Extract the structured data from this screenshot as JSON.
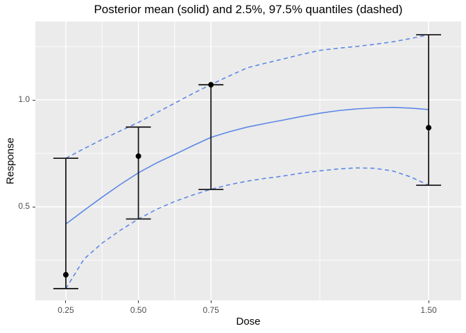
{
  "figure": {
    "title": "Posterior mean (solid) and 2.5%, 97.5% quantiles (dashed)",
    "x_axis_label": "Dose",
    "y_axis_label": "Response"
  },
  "chart_data": {
    "type": "line",
    "title": "Posterior mean (solid) and 2.5%, 97.5% quantiles (dashed)",
    "xlabel": "Dose",
    "ylabel": "Response",
    "xlim": [
      0.145,
      1.612
    ],
    "ylim": [
      0.062,
      1.367
    ],
    "grid": true,
    "legend_position": "none",
    "x_major_ticks": [
      {
        "value": 0.25,
        "label": "0.25"
      },
      {
        "value": 0.5,
        "label": "0.50"
      },
      {
        "value": 0.75,
        "label": "0.75"
      },
      {
        "value": 1.5,
        "label": "1.50"
      }
    ],
    "y_major_ticks": [
      {
        "value": 0.5,
        "label": "0.5"
      },
      {
        "value": 1.0,
        "label": "1.0"
      }
    ],
    "x_minor_gridlines": [
      0.375,
      0.625,
      1.125
    ],
    "y_minor_gridlines": [
      0.25,
      0.75,
      1.25
    ],
    "series": [
      {
        "name": "quantile-2.5",
        "style": "dashed",
        "x": [
          0.25,
          0.3125,
          0.375,
          0.4375,
          0.5,
          0.5625,
          0.625,
          0.6875,
          0.75,
          0.8125,
          0.875,
          0.9375,
          1.0,
          1.0625,
          1.125,
          1.1875,
          1.25,
          1.3125,
          1.375,
          1.4375,
          1.5
        ],
        "y": [
          0.117,
          0.255,
          0.33,
          0.39,
          0.443,
          0.488,
          0.525,
          0.555,
          0.582,
          0.603,
          0.62,
          0.633,
          0.644,
          0.658,
          0.668,
          0.677,
          0.682,
          0.68,
          0.668,
          0.64,
          0.601
        ]
      },
      {
        "name": "quantile-97.5",
        "style": "dashed",
        "x": [
          0.25,
          0.3125,
          0.375,
          0.4375,
          0.5,
          0.5625,
          0.625,
          0.6875,
          0.75,
          0.8125,
          0.875,
          0.9375,
          1.0,
          1.0625,
          1.125,
          1.1875,
          1.25,
          1.3125,
          1.375,
          1.4375,
          1.5
        ],
        "y": [
          0.727,
          0.772,
          0.815,
          0.855,
          0.895,
          0.94,
          0.985,
          1.03,
          1.072,
          1.112,
          1.15,
          1.172,
          1.192,
          1.213,
          1.232,
          1.242,
          1.25,
          1.26,
          1.272,
          1.287,
          1.305
        ]
      },
      {
        "name": "posterior-mean",
        "style": "solid",
        "x": [
          0.25,
          0.3125,
          0.375,
          0.4375,
          0.5,
          0.5625,
          0.625,
          0.6875,
          0.75,
          0.8125,
          0.875,
          0.9375,
          1.0,
          1.0625,
          1.125,
          1.1875,
          1.25,
          1.3125,
          1.375,
          1.4375,
          1.5
        ],
        "y": [
          0.419,
          0.483,
          0.545,
          0.604,
          0.659,
          0.705,
          0.745,
          0.786,
          0.825,
          0.851,
          0.873,
          0.89,
          0.906,
          0.923,
          0.938,
          0.95,
          0.958,
          0.963,
          0.965,
          0.962,
          0.955
        ]
      }
    ],
    "error_bars": [
      {
        "dose": 0.25,
        "mean": 0.182,
        "lower": 0.117,
        "upper": 0.727
      },
      {
        "dose": 0.5,
        "mean": 0.737,
        "lower": 0.443,
        "upper": 0.873
      },
      {
        "dose": 0.75,
        "mean": 1.071,
        "lower": 0.581,
        "upper": 1.071
      },
      {
        "dose": 1.5,
        "mean": 0.87,
        "lower": 0.601,
        "upper": 1.305
      }
    ],
    "colors": {
      "line": "#5C87E6",
      "panel_bg": "#EBEBEB",
      "grid": "#FFFFFF",
      "errorbar": "#1A1A1A",
      "point": "#000000",
      "tick_label": "#4D4D4D",
      "axis_title": "#000000"
    }
  }
}
